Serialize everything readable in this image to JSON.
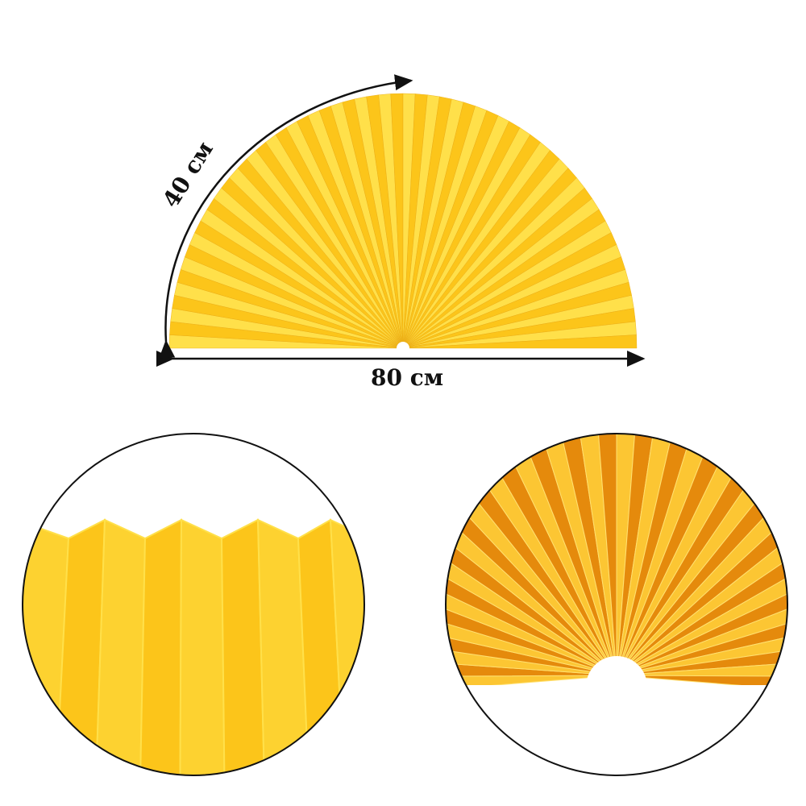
{
  "dimensions": {
    "width_label": "80 см",
    "arc_label": "40 см"
  },
  "colors": {
    "fan_yellow": "#fcc51a",
    "fan_light": "#ffe04a",
    "fan_shadow": "#e9a810",
    "closeup_orange": "#e58a0c",
    "outline": "#111111"
  }
}
